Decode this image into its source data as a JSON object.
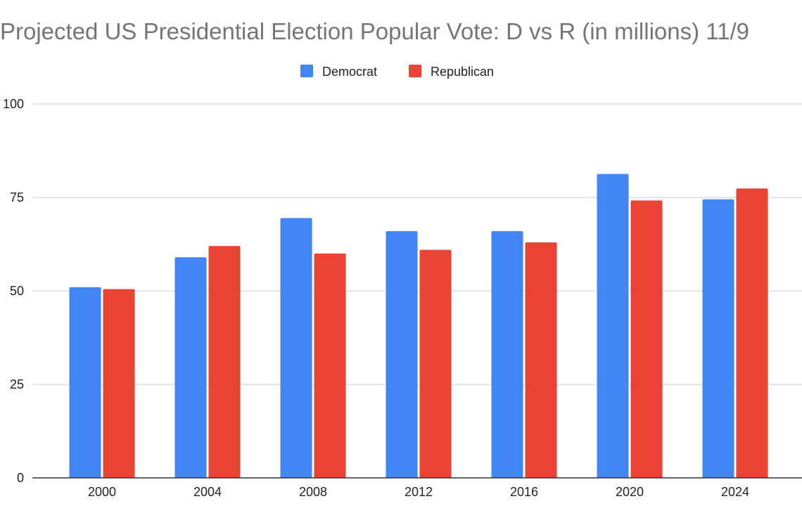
{
  "chart_data": {
    "type": "bar",
    "title": "Projected US Presidential Election Popular Vote: D vs R (in millions) 11/9",
    "categories": [
      "2000",
      "2004",
      "2008",
      "2012",
      "2016",
      "2020",
      "2024"
    ],
    "series": [
      {
        "name": "Democrat",
        "color": "#4285F4",
        "values": [
          51.0,
          59.0,
          69.5,
          66.0,
          66.0,
          81.3,
          74.5
        ]
      },
      {
        "name": "Republican",
        "color": "#EA4335",
        "values": [
          50.5,
          62.0,
          60.0,
          61.0,
          63.0,
          74.2,
          77.4
        ]
      }
    ],
    "ylim": [
      0,
      100
    ],
    "yticks": [
      0,
      25,
      50,
      75,
      100
    ],
    "xlabel": "",
    "ylabel": "",
    "grid": true,
    "legend_position": "top-center"
  }
}
